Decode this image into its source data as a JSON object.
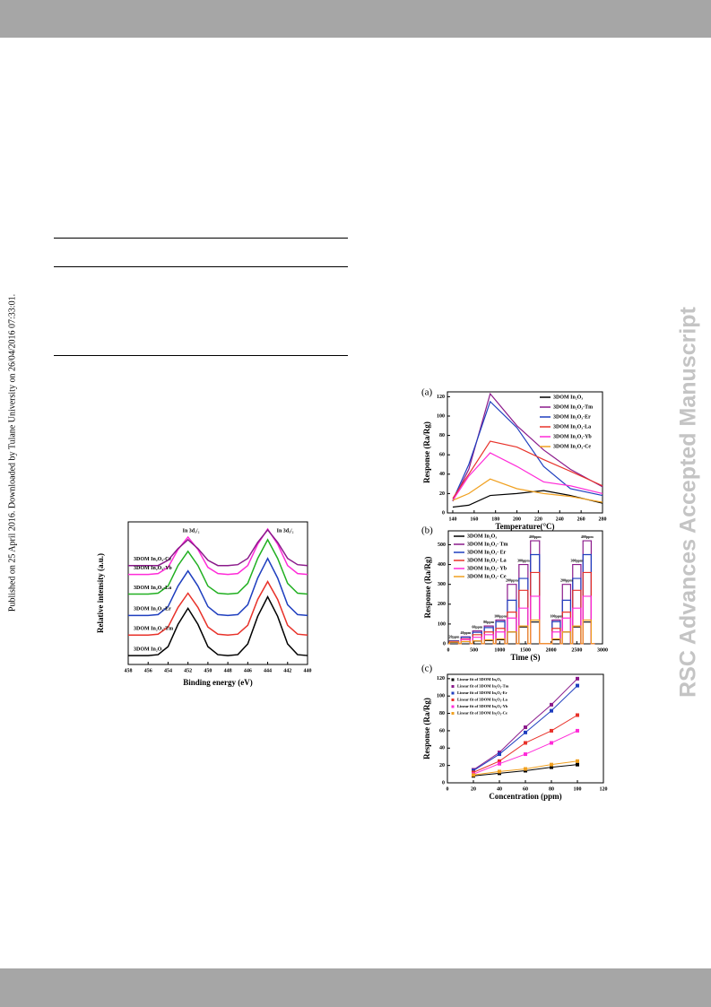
{
  "sidebar": "Published on 25 April 2016. Downloaded by Tulane University on 26/04/2016 07:33:01.",
  "watermark": "RSC Advances Accepted Manuscript",
  "chart_data": [
    {
      "type": "line",
      "xlabel": "Binding energy (eV)",
      "ylabel": "Relative intensity (a.u.)",
      "annotations": [
        "In 3d₃/₂",
        "In 3d₅/₂"
      ],
      "legend": "inline",
      "xlim": [
        458,
        440
      ],
      "ylim": [
        0,
        160
      ],
      "xticks": [
        458,
        456,
        454,
        452,
        450,
        448,
        446,
        444,
        442,
        440
      ],
      "x": [
        458,
        457,
        456,
        455,
        454,
        453,
        452,
        451,
        450,
        449,
        448,
        447,
        446,
        445,
        444,
        443,
        442,
        441,
        440
      ],
      "series": [
        {
          "name": "3DOM In₂O₃",
          "color": "#000000",
          "values": [
            10,
            10,
            10,
            11,
            20,
            45,
            63,
            45,
            20,
            11,
            10,
            11,
            23,
            54,
            76,
            54,
            23,
            11,
            10
          ]
        },
        {
          "name": "3DOM In₂O₃-Tm",
          "color": "#e8322a",
          "values": [
            33,
            33,
            33,
            34,
            42,
            64,
            80,
            64,
            42,
            34,
            33,
            34,
            44,
            73,
            93,
            73,
            44,
            34,
            33
          ]
        },
        {
          "name": "3DOM In₂O₃-Er",
          "color": "#1f3fbf",
          "values": [
            55,
            55,
            55,
            56,
            65,
            88,
            105,
            88,
            65,
            56,
            55,
            56,
            67,
            97,
            119,
            97,
            67,
            56,
            55
          ]
        },
        {
          "name": "3DOM In₂O₃-La",
          "color": "#22b022",
          "values": [
            79,
            79,
            79,
            80,
            88,
            111,
            127,
            111,
            88,
            80,
            79,
            80,
            91,
            119,
            140,
            119,
            91,
            80,
            79
          ]
        },
        {
          "name": "3DOM In₂O₃-Yb",
          "color": "#ff2bd8",
          "values": [
            101,
            101,
            101,
            102,
            109,
            129,
            143,
            129,
            109,
            102,
            101,
            102,
            111,
            135,
            152,
            135,
            111,
            102,
            101
          ]
        },
        {
          "name": "3DOM In₂O₃-Ce",
          "color": "#8b1a8b",
          "values": [
            111,
            111,
            111,
            111,
            117,
            130,
            140,
            130,
            117,
            111,
            111,
            112,
            119,
            137,
            151,
            137,
            119,
            112,
            111
          ]
        }
      ]
    },
    {
      "type": "line",
      "panel": "(a)",
      "xlabel": "Temperature(°C)",
      "ylabel": "Response (Ra/Rg)",
      "legend": "upper right",
      "xlim": [
        135,
        280
      ],
      "ylim": [
        0,
        125
      ],
      "xticks": [
        140,
        160,
        180,
        200,
        220,
        240,
        260,
        280
      ],
      "yticks": [
        0,
        20,
        40,
        60,
        80,
        100,
        120
      ],
      "x": [
        140,
        155,
        175,
        200,
        225,
        250,
        280
      ],
      "series": [
        {
          "name": "3DOM In₂O₃",
          "color": "#000000",
          "values": [
            6,
            8,
            18,
            20,
            23,
            18,
            10
          ]
        },
        {
          "name": "3DOM In₂O₃-Tm",
          "color": "#8b1a8b",
          "values": [
            12,
            45,
            123,
            90,
            65,
            45,
            27
          ]
        },
        {
          "name": "3DOM In₂O₃-Er",
          "color": "#1f3fbf",
          "values": [
            13,
            50,
            115,
            88,
            48,
            25,
            18
          ]
        },
        {
          "name": "3DOM In₂O₃-La",
          "color": "#e8322a",
          "values": [
            15,
            40,
            74,
            68,
            55,
            43,
            28
          ]
        },
        {
          "name": "3DOM In₂O₃-Yb",
          "color": "#ff2bd8",
          "values": [
            13,
            38,
            62,
            48,
            32,
            28,
            20
          ]
        },
        {
          "name": "3DOM In₂O₃-Ce",
          "color": "#f0a020",
          "values": [
            13,
            20,
            35,
            25,
            20,
            17,
            11
          ]
        }
      ]
    },
    {
      "type": "step",
      "panel": "(b)",
      "xlabel": "Time (S)",
      "ylabel": "Response (Ra/Rg)",
      "legend": "upper left",
      "annotations": [
        "20ppm",
        "40ppm",
        "60ppm",
        "80ppm",
        "100ppm",
        "200ppm",
        "300ppm",
        "400ppm",
        "100ppm",
        "200ppm",
        "300ppm",
        "400ppm"
      ],
      "xlim": [
        0,
        3000
      ],
      "ylim": [
        0,
        570
      ],
      "xticks": [
        0,
        500,
        1000,
        1500,
        2000,
        2500,
        3000
      ],
      "yticks": [
        0,
        100,
        200,
        300,
        400,
        500
      ],
      "x": [
        0,
        25,
        200,
        250,
        425,
        475,
        650,
        700,
        875,
        925,
        1100,
        1150,
        1325,
        1375,
        1550,
        1600,
        1775,
        2020,
        2180,
        2220,
        2380,
        2420,
        2580,
        2620,
        2780,
        2850
      ],
      "series": [
        {
          "name": "3DOM In₂O₃",
          "color": "#000000",
          "values": [
            1,
            8,
            1,
            11,
            1,
            14,
            1,
            17,
            1,
            21,
            1,
            60,
            1,
            85,
            1,
            110,
            1,
            21,
            1,
            60,
            1,
            85,
            1,
            110,
            1,
            1
          ]
        },
        {
          "name": "3DOM In₂O₃- Tm",
          "color": "#8b1a8b",
          "values": [
            1,
            15,
            1,
            35,
            1,
            65,
            1,
            90,
            1,
            120,
            1,
            300,
            1,
            400,
            1,
            520,
            1,
            120,
            1,
            300,
            1,
            400,
            1,
            520,
            1,
            1
          ]
        },
        {
          "name": "3DOM In₂O₃- Er",
          "color": "#1f3fbf",
          "values": [
            1,
            15,
            1,
            33,
            1,
            58,
            1,
            82,
            1,
            112,
            1,
            220,
            1,
            330,
            1,
            450,
            1,
            112,
            1,
            220,
            1,
            330,
            1,
            450,
            1,
            1
          ]
        },
        {
          "name": "3DOM In₂O₃- La",
          "color": "#e8322a",
          "values": [
            1,
            12,
            1,
            25,
            1,
            46,
            1,
            60,
            1,
            78,
            1,
            160,
            1,
            270,
            1,
            360,
            1,
            78,
            1,
            160,
            1,
            270,
            1,
            360,
            1,
            1
          ]
        },
        {
          "name": "3DOM In₂O₃- Yb",
          "color": "#ff2bd8",
          "values": [
            1,
            10,
            1,
            22,
            1,
            33,
            1,
            46,
            1,
            60,
            1,
            130,
            1,
            180,
            1,
            240,
            1,
            60,
            1,
            130,
            1,
            180,
            1,
            240,
            1,
            1
          ]
        },
        {
          "name": "3DOM In₂O₃- Ce",
          "color": "#f0a020",
          "values": [
            1,
            9,
            1,
            12,
            1,
            15,
            1,
            20,
            1,
            25,
            1,
            60,
            1,
            90,
            1,
            120,
            1,
            25,
            1,
            60,
            1,
            90,
            1,
            120,
            1,
            1
          ]
        }
      ]
    },
    {
      "type": "scatter",
      "panel": "(c)",
      "xlabel": "Concentration (ppm)",
      "ylabel": "Response (Ra/Rg)",
      "legend": "upper left",
      "linear_fit": true,
      "xlim": [
        0,
        120
      ],
      "ylim": [
        0,
        125
      ],
      "xticks": [
        0,
        20,
        40,
        60,
        80,
        100,
        120
      ],
      "yticks": [
        0,
        20,
        40,
        60,
        80,
        100,
        120
      ],
      "x": [
        20,
        40,
        60,
        80,
        100
      ],
      "series": [
        {
          "name": "Linear fit  of 3DOM In₂O₃",
          "color": "#000000",
          "values": [
            8,
            11,
            14,
            18,
            21
          ]
        },
        {
          "name": "Linear fit  of 3DOM In₂O₃-Tm",
          "color": "#8b1a8b",
          "values": [
            15,
            35,
            64,
            90,
            120
          ]
        },
        {
          "name": "Linear fit  of 3DOM In₂O₃-Er",
          "color": "#1f3fbf",
          "values": [
            14,
            33,
            58,
            83,
            112
          ]
        },
        {
          "name": "Linear fit  of 3DOM In₂O₃-La",
          "color": "#e8322a",
          "values": [
            12,
            25,
            46,
            60,
            78
          ]
        },
        {
          "name": "Linear fit  of 3DOM In₂O₃-Yb",
          "color": "#ff2bd8",
          "values": [
            10,
            22,
            33,
            46,
            60
          ]
        },
        {
          "name": "Linear fit  of 3DOM In₂O₃-Ce",
          "color": "#f0a020",
          "values": [
            9,
            13,
            16,
            21,
            25
          ]
        }
      ]
    }
  ]
}
